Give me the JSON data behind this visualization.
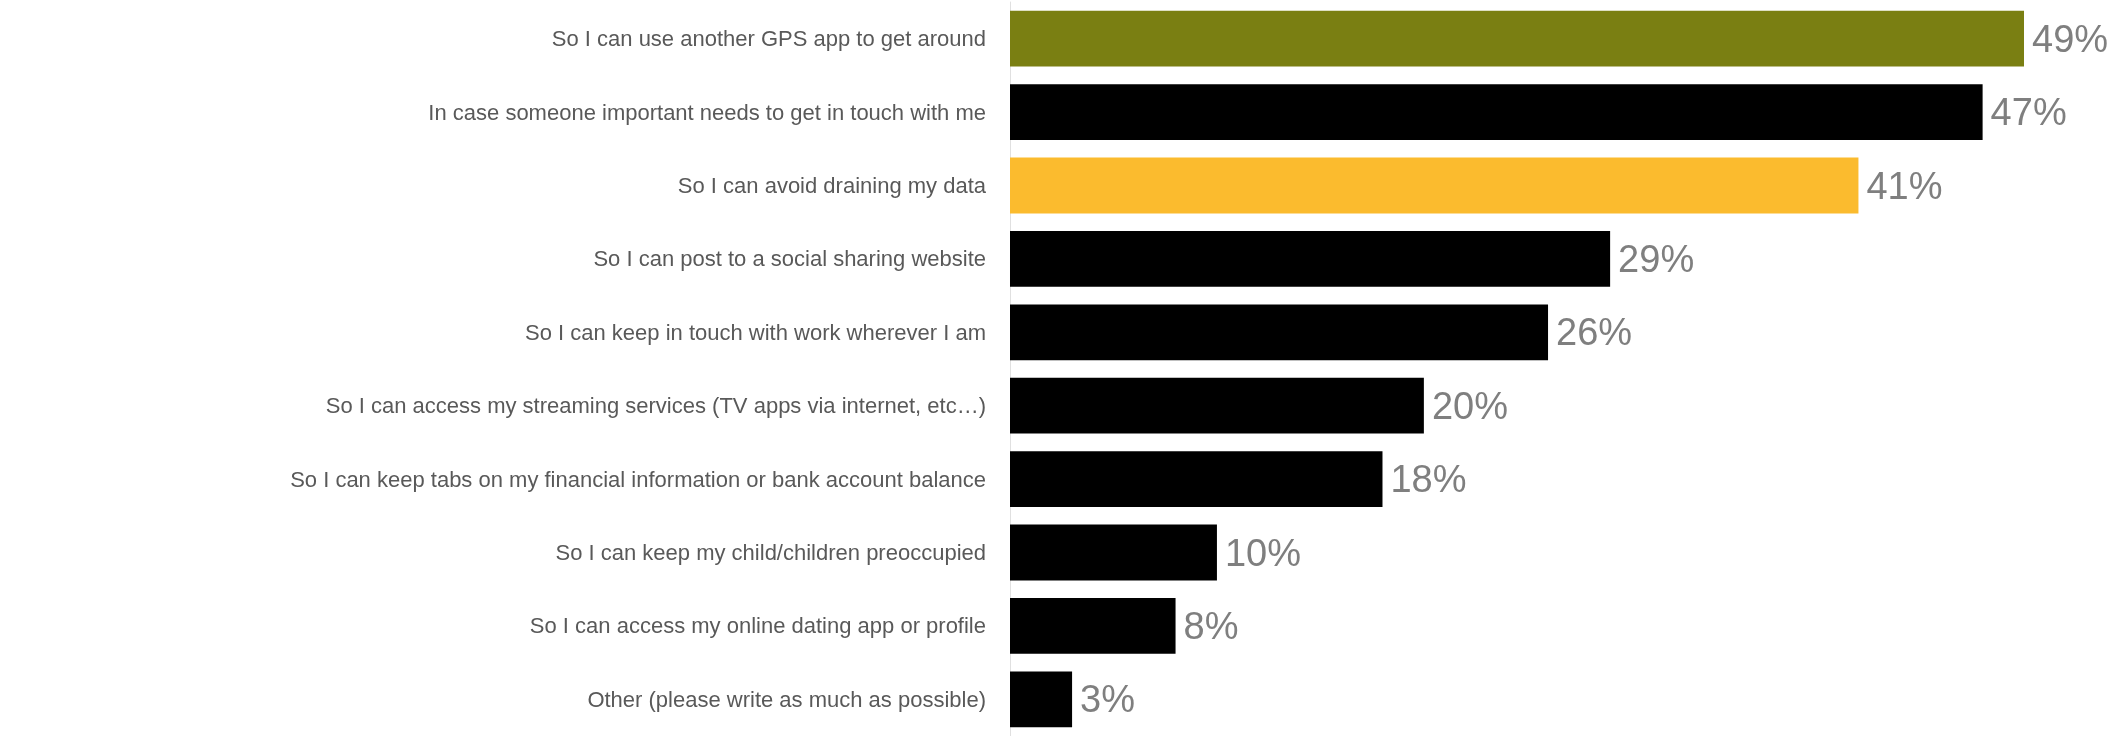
{
  "chart_data": {
    "type": "bar",
    "orientation": "horizontal",
    "categories": [
      "So I can use another GPS app to get around",
      "In case someone important needs to get in touch with me",
      "So I can avoid draining my data",
      "So I can post to a social sharing website",
      "So I can keep in touch with work wherever I am",
      "So I can access my streaming services (TV apps via internet, etc…)",
      "So I can keep tabs on my financial information or bank account balance",
      "So I can keep my child/children preoccupied",
      "So I can access my online dating app or profile",
      "Other (please write as much as possible)"
    ],
    "values": [
      49,
      47,
      41,
      29,
      26,
      20,
      18,
      10,
      8,
      3
    ],
    "value_labels": [
      "49%",
      "47%",
      "41%",
      "29%",
      "26%",
      "20%",
      "18%",
      "10%",
      "8%",
      "3%"
    ],
    "colors": [
      "#7a7f12",
      "#000000",
      "#fbbb2e",
      "#000000",
      "#000000",
      "#000000",
      "#000000",
      "#000000",
      "#000000",
      "#000000"
    ],
    "tick_labels": "y"
  }
}
